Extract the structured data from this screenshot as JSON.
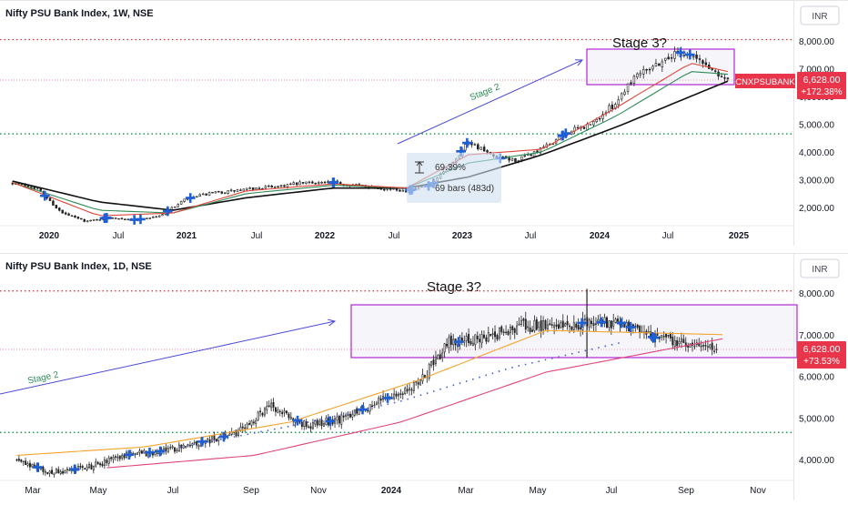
{
  "colors": {
    "candle": "#222222",
    "ma_black": "#111111",
    "ma_green": "#2e8b57",
    "ma_red": "#e0453a",
    "ma_orange": "#f2a32c",
    "ma_pink": "#e0457a",
    "ma_blue_dots": "#3b5bdb",
    "arrow": "#4a4ad6",
    "box": "#b027d6",
    "signal": "#1f5fd6",
    "resistance": "#d62d2d",
    "support": "#1f9d55",
    "price_tag": "#e8354a",
    "stage2_text": "#2e8b57",
    "measure_fill": "#cfe0f2"
  },
  "chart_data": [
    {
      "type": "candlestick",
      "title": "Nifty PSU Bank Index, 1W, NSE",
      "currency": "INR",
      "symbol_tag": "CNXPSUBANK",
      "last_price": "6,628.00",
      "change_pct": "+172.38%",
      "x_ticks": [
        "2020",
        "Jul",
        "2021",
        "Jul",
        "2022",
        "Jul",
        "2023",
        "Jul",
        "2024",
        "Jul",
        "2025"
      ],
      "y_ticks": [
        "2,000.00",
        "3,000.00",
        "4,000.00",
        "5,000.00",
        "6,000.00",
        "7,000.00",
        "8,000.00"
      ],
      "ylim": [
        1500,
        8400
      ],
      "resistance_level": 8050,
      "support_level": 4650,
      "last_price_value": 6628,
      "labels": {
        "stage_box": "Stage 3?",
        "trend": "Stage 2",
        "measure_pct": "69.39%",
        "measure_bars": "69 bars (483d)"
      },
      "series": [
        {
          "key": "price",
          "x": [
            "2019-11",
            "2020-01",
            "2020-03",
            "2020-05",
            "2020-07",
            "2020-09",
            "2020-11",
            "2021-01",
            "2021-03",
            "2021-05",
            "2021-07",
            "2021-09",
            "2021-11",
            "2022-01",
            "2022-03",
            "2022-05",
            "2022-07",
            "2022-09",
            "2022-11",
            "2022-12",
            "2023-02",
            "2023-04",
            "2023-06",
            "2023-08",
            "2023-10",
            "2023-12",
            "2024-01",
            "2024-02",
            "2024-03",
            "2024-05",
            "2024-06",
            "2024-07",
            "2024-08",
            "2024-09"
          ],
          "values": [
            2900,
            2700,
            1800,
            1500,
            1650,
            1550,
            1700,
            2300,
            2500,
            2600,
            2700,
            2800,
            2900,
            2900,
            2800,
            2700,
            2600,
            2800,
            3800,
            4400,
            3800,
            3700,
            4100,
            4700,
            5000,
            5800,
            6500,
            7000,
            7100,
            7600,
            7500,
            7200,
            6900,
            6628
          ]
        },
        {
          "key": "ma_black",
          "x": [
            "2019-11",
            "2020-06",
            "2020-12",
            "2021-06",
            "2022-01",
            "2022-07",
            "2022-12",
            "2023-06",
            "2023-12",
            "2024-06",
            "2024-09"
          ],
          "values": [
            2950,
            2200,
            1900,
            2350,
            2700,
            2700,
            3100,
            3900,
            4900,
            6000,
            6550
          ]
        },
        {
          "key": "ma_green",
          "x": [
            "2019-11",
            "2020-06",
            "2020-12",
            "2021-06",
            "2022-01",
            "2022-07",
            "2022-12",
            "2023-06",
            "2023-12",
            "2024-06",
            "2024-09"
          ],
          "values": [
            2900,
            1900,
            1800,
            2500,
            2800,
            2700,
            3600,
            4000,
            5300,
            6900,
            6800
          ]
        },
        {
          "key": "ma_red",
          "x": [
            "2019-11",
            "2020-06",
            "2020-12",
            "2021-06",
            "2022-01",
            "2022-07",
            "2022-12",
            "2023-06",
            "2023-12",
            "2024-06",
            "2024-09"
          ],
          "values": [
            2900,
            1700,
            1800,
            2600,
            2850,
            2700,
            3900,
            4100,
            5600,
            7200,
            6900
          ]
        }
      ]
    },
    {
      "type": "candlestick",
      "title": "Nifty PSU Bank Index, 1D, NSE",
      "currency": "INR",
      "last_price": "6,628.00",
      "change_pct": "+73.53%",
      "x_ticks": [
        "Mar",
        "May",
        "Jul",
        "Sep",
        "Nov",
        "2024",
        "Mar",
        "May",
        "Jul",
        "Sep",
        "Nov"
      ],
      "y_ticks": [
        "4,000.00",
        "5,000.00",
        "6,000.00",
        "7,000.00",
        "8,000.00"
      ],
      "ylim": [
        3600,
        8400
      ],
      "resistance_level": 8050,
      "support_level": 4650,
      "last_price_value": 6628,
      "labels": {
        "stage_box": "Stage 3?",
        "trend": "Stage 2"
      },
      "series": [
        {
          "key": "price",
          "x": [
            "2023-02-15",
            "2023-03-15",
            "2023-04-15",
            "2023-05-15",
            "2023-06-15",
            "2023-07-15",
            "2023-08-15",
            "2023-09-15",
            "2023-10-15",
            "2023-11-15",
            "2023-12-15",
            "2024-01-15",
            "2024-02-10",
            "2024-03-10",
            "2024-04-10",
            "2024-05-10",
            "2024-06-05",
            "2024-07-01",
            "2024-08-01",
            "2024-09-01",
            "2024-09-20"
          ],
          "values": [
            4000,
            3700,
            3800,
            4100,
            4200,
            4400,
            4600,
            5300,
            4800,
            5000,
            5400,
            5800,
            6800,
            6900,
            7200,
            7200,
            7300,
            7300,
            6900,
            6800,
            6628
          ]
        },
        {
          "key": "ma_pink",
          "x": [
            "2023-05-01",
            "2023-09-01",
            "2024-01-01",
            "2024-05-01",
            "2024-09-25"
          ],
          "values": [
            3800,
            4100,
            4900,
            6100,
            6900
          ]
        },
        {
          "key": "ma_orange",
          "x": [
            "2023-02-15",
            "2023-06-01",
            "2023-10-01",
            "2024-01-15",
            "2024-05-01",
            "2024-09-25"
          ],
          "values": [
            4100,
            4300,
            4900,
            5900,
            7100,
            7000
          ]
        },
        {
          "key": "ma_blue_dots",
          "x": [
            "2023-07-01",
            "2023-10-01",
            "2024-01-01",
            "2024-04-01",
            "2024-07-01"
          ],
          "values": [
            4300,
            4800,
            5400,
            6200,
            6800
          ]
        }
      ]
    }
  ]
}
